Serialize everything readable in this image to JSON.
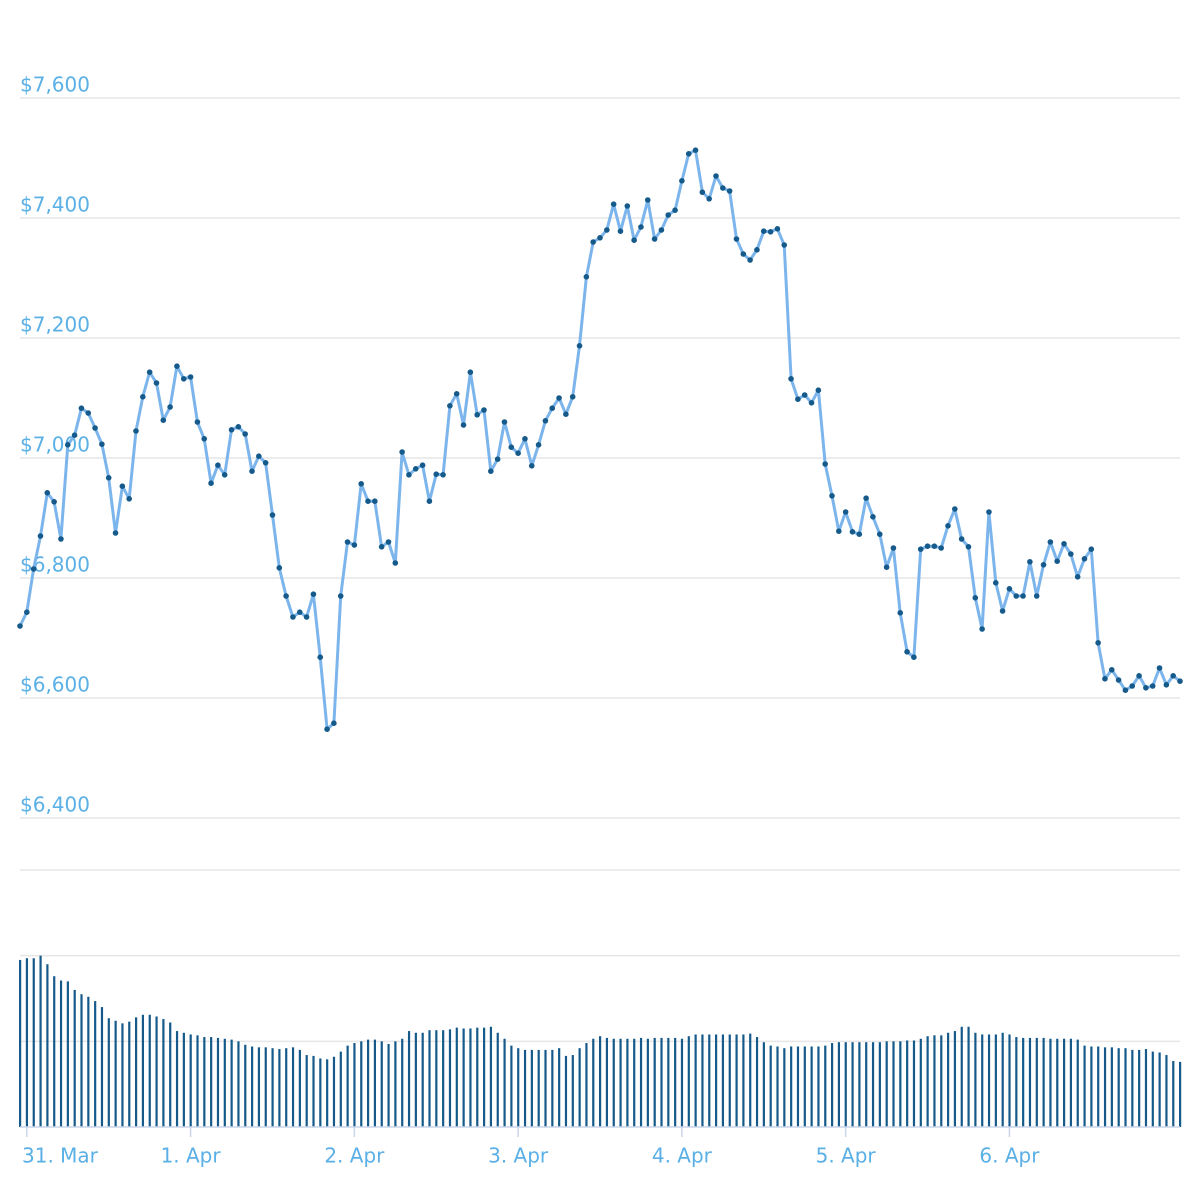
{
  "chart_data": [
    {
      "type": "line",
      "color": "#7cb5ec",
      "marker_color": "#155a8a",
      "grid": true,
      "x": [
        -1,
        0,
        1,
        2,
        3,
        4,
        5,
        6,
        7,
        8,
        9,
        10,
        11,
        12,
        13,
        14,
        15,
        16,
        17,
        18,
        19,
        20,
        21,
        22,
        23,
        24,
        25,
        26,
        27,
        28,
        29,
        30,
        31,
        32,
        33,
        34,
        35,
        36,
        37,
        38,
        39,
        40,
        41,
        42,
        43,
        44,
        45,
        46,
        47,
        48,
        49,
        50,
        51,
        52,
        53,
        54,
        55,
        56,
        57,
        58,
        59,
        60,
        61,
        62,
        63,
        64,
        65,
        66,
        67,
        68,
        69,
        70,
        71,
        72,
        73,
        74,
        75,
        76,
        77,
        78,
        79,
        80,
        81,
        82,
        83,
        84,
        85,
        86,
        87,
        88,
        89,
        90,
        91,
        92,
        93,
        94,
        95,
        96,
        97,
        98,
        99,
        100,
        101,
        102,
        103,
        104,
        105,
        106,
        107,
        108,
        109,
        110,
        111,
        112,
        113,
        114,
        115,
        116,
        117,
        118,
        119,
        120,
        121,
        122,
        123,
        124,
        125,
        126,
        127,
        128,
        129,
        130,
        131,
        132,
        133,
        134,
        135,
        136,
        137,
        138,
        139,
        140,
        141,
        142,
        143,
        144,
        145,
        146,
        147,
        148,
        149,
        150,
        151,
        152,
        153,
        154,
        155,
        156,
        157,
        158,
        159,
        160,
        161,
        162,
        163,
        164,
        165,
        166,
        167,
        168,
        169
      ],
      "values": [
        6720,
        6743,
        6815,
        6870,
        6942,
        6927,
        6865,
        7022,
        7038,
        7083,
        7075,
        7050,
        7023,
        6967,
        6875,
        6953,
        6932,
        7045,
        7102,
        7143,
        7125,
        7063,
        7085,
        7153,
        7132,
        7135,
        7060,
        7032,
        6958,
        6988,
        6972,
        7047,
        7052,
        7040,
        6978,
        7003,
        6992,
        6905,
        6817,
        6770,
        6735,
        6743,
        6735,
        6773,
        6668,
        6548,
        6558,
        6770,
        6860,
        6855,
        6957,
        6928,
        6928,
        6852,
        6860,
        6825,
        7010,
        6972,
        6982,
        6988,
        6928,
        6973,
        6972,
        7087,
        7107,
        7055,
        7143,
        7072,
        7080,
        6978,
        6998,
        7060,
        7018,
        7008,
        7032,
        6987,
        7022,
        7062,
        7083,
        7100,
        7073,
        7102,
        7187,
        7302,
        7360,
        7367,
        7380,
        7423,
        7378,
        7420,
        7363,
        7385,
        7430,
        7365,
        7380,
        7405,
        7413,
        7462,
        7507,
        7513,
        7443,
        7432,
        7470,
        7450,
        7445,
        7365,
        7340,
        7330,
        7347,
        7378,
        7377,
        7382,
        7355,
        7132,
        7098,
        7105,
        7092,
        7113,
        6990,
        6937,
        6878,
        6910,
        6877,
        6873,
        6933,
        6902,
        6873,
        6818,
        6850,
        6742,
        6677,
        6668,
        6848,
        6853,
        6853,
        6850,
        6887,
        6915,
        6865,
        6852,
        6767,
        6715,
        6910,
        6792,
        6745,
        6782,
        6770,
        6770,
        6827,
        6770,
        6822,
        6860,
        6828,
        6857,
        6840,
        6802,
        6832,
        6848,
        6692,
        6632,
        6647,
        6630,
        6613,
        6620,
        6637,
        6617,
        6620,
        6650,
        6622,
        6637,
        6628
      ],
      "xlim": [
        -1,
        169
      ],
      "xticks": [
        {
          "value": 0,
          "label": "31. Mar"
        },
        {
          "value": 24,
          "label": "1. Apr"
        },
        {
          "value": 48,
          "label": "2. Apr"
        },
        {
          "value": 72,
          "label": "3. Apr"
        },
        {
          "value": 96,
          "label": "4. Apr"
        },
        {
          "value": 120,
          "label": "5. Apr"
        },
        {
          "value": 144,
          "label": "6. Apr"
        }
      ],
      "ylim": [
        6400,
        7700
      ],
      "yticks": [
        {
          "value": 6400,
          "label": "$6,400"
        },
        {
          "value": 6600,
          "label": "$6,600"
        },
        {
          "value": 6800,
          "label": "$6,800"
        },
        {
          "value": 7000,
          "label": "$7,000"
        },
        {
          "value": 7200,
          "label": "$7,200"
        },
        {
          "value": 7400,
          "label": "$7,400"
        },
        {
          "value": 7600,
          "label": "$7,600"
        }
      ]
    },
    {
      "type": "bar",
      "color": "#155a8a",
      "grid": true,
      "values": [
        1.95,
        1.97,
        1.97,
        2.0,
        1.9,
        1.76,
        1.71,
        1.7,
        1.6,
        1.55,
        1.52,
        1.47,
        1.4,
        1.27,
        1.24,
        1.21,
        1.23,
        1.28,
        1.31,
        1.31,
        1.29,
        1.26,
        1.22,
        1.12,
        1.1,
        1.08,
        1.07,
        1.05,
        1.05,
        1.04,
        1.03,
        1.02,
        1.0,
        0.96,
        0.94,
        0.93,
        0.93,
        0.92,
        0.91,
        0.92,
        0.93,
        0.9,
        0.84,
        0.83,
        0.8,
        0.79,
        0.82,
        0.88,
        0.95,
        0.98,
        1.0,
        1.02,
        1.02,
        1.0,
        0.97,
        1.0,
        1.03,
        1.12,
        1.1,
        1.1,
        1.13,
        1.13,
        1.13,
        1.14,
        1.16,
        1.15,
        1.15,
        1.16,
        1.16,
        1.17,
        1.1,
        1.03,
        0.95,
        0.92,
        0.9,
        0.9,
        0.9,
        0.9,
        0.9,
        0.92,
        0.83,
        0.84,
        0.92,
        0.98,
        1.03,
        1.06,
        1.04,
        1.03,
        1.03,
        1.03,
        1.03,
        1.04,
        1.03,
        1.04,
        1.04,
        1.04,
        1.04,
        1.03,
        1.06,
        1.08,
        1.08,
        1.08,
        1.08,
        1.08,
        1.08,
        1.08,
        1.08,
        1.09,
        1.05,
        0.99,
        0.95,
        0.94,
        0.92,
        0.94,
        0.94,
        0.94,
        0.94,
        0.94,
        0.95,
        0.98,
        0.99,
        0.99,
        0.99,
        0.99,
        0.99,
        0.99,
        0.99,
        1.0,
        1.0,
        1.0,
        1.01,
        1.01,
        1.03,
        1.06,
        1.07,
        1.07,
        1.1,
        1.12,
        1.17,
        1.17,
        1.1,
        1.08,
        1.08,
        1.08,
        1.1,
        1.08,
        1.05,
        1.04,
        1.04,
        1.04,
        1.04,
        1.03,
        1.03,
        1.03,
        1.03,
        1.02,
        0.95,
        0.94,
        0.94,
        0.93,
        0.93,
        0.92,
        0.92,
        0.9,
        0.9,
        0.91,
        0.88,
        0.87,
        0.84,
        0.77,
        0.76
      ],
      "ylim": [
        0,
        3
      ],
      "gridlines": [
        1,
        2,
        3
      ]
    }
  ]
}
